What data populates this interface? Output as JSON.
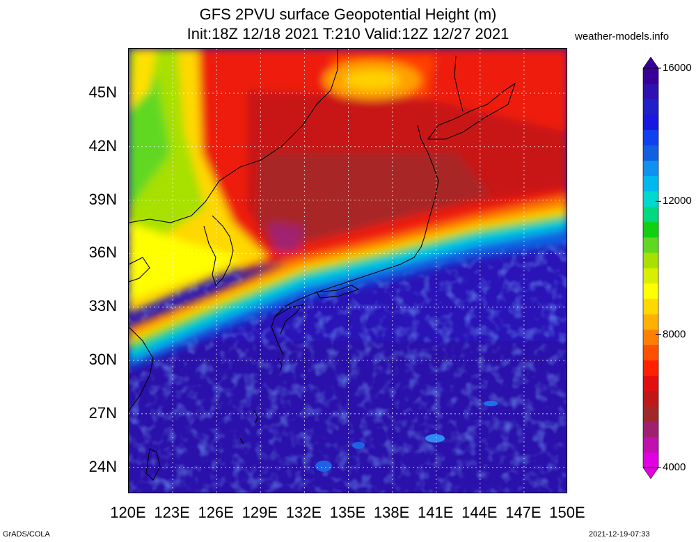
{
  "header": {
    "title_line1": "GFS 2PVU surface Geopotential Height (m)",
    "title_line2": "Init:18Z 12/18 2021 T:210 Valid:12Z 12/27 2021",
    "site": "weather-models.info"
  },
  "map": {
    "lon_range": [
      120,
      150
    ],
    "lat_range": [
      22.5,
      47.5
    ],
    "lat_labels": [
      {
        "lat": 45,
        "label": "45N"
      },
      {
        "lat": 42,
        "label": "42N"
      },
      {
        "lat": 39,
        "label": "39N"
      },
      {
        "lat": 36,
        "label": "36N"
      },
      {
        "lat": 33,
        "label": "33N"
      },
      {
        "lat": 30,
        "label": "30N"
      },
      {
        "lat": 27,
        "label": "27N"
      },
      {
        "lat": 24,
        "label": "24N"
      }
    ],
    "lon_labels": [
      {
        "lon": 120,
        "label": "120E"
      },
      {
        "lon": 123,
        "label": "123E"
      },
      {
        "lon": 126,
        "label": "126E"
      },
      {
        "lon": 129,
        "label": "129E"
      },
      {
        "lon": 132,
        "label": "132E"
      },
      {
        "lon": 135,
        "label": "135E"
      },
      {
        "lon": 138,
        "label": "138E"
      },
      {
        "lon": 141,
        "label": "141E"
      },
      {
        "lon": 144,
        "label": "144E"
      },
      {
        "lon": 147,
        "label": "147E"
      },
      {
        "lon": 150,
        "label": "150E"
      }
    ],
    "grid_lines": "dotted"
  },
  "colorbar": {
    "min": 4000,
    "max": 16000,
    "labels": [
      {
        "value": 16000,
        "label": "16000"
      },
      {
        "value": 12000,
        "label": "12000"
      },
      {
        "value": 8000,
        "label": "8000"
      },
      {
        "value": 4000,
        "label": "4000"
      }
    ],
    "colors": [
      "#e000e0",
      "#c010b0",
      "#a02070",
      "#a02828",
      "#c01818",
      "#e01010",
      "#ff2000",
      "#ff5000",
      "#ff8000",
      "#ffb000",
      "#ffd800",
      "#ffff00",
      "#d8f000",
      "#a8e000",
      "#60d820",
      "#10d010",
      "#00d880",
      "#00d8d0",
      "#00b8f0",
      "#1090f0",
      "#1060e0",
      "#1040f0",
      "#1818e0",
      "#2020c8",
      "#3010b0",
      "#380098"
    ]
  },
  "footer": {
    "left": "GrADS/COLA",
    "right": "2021-12-19-07:33"
  }
}
